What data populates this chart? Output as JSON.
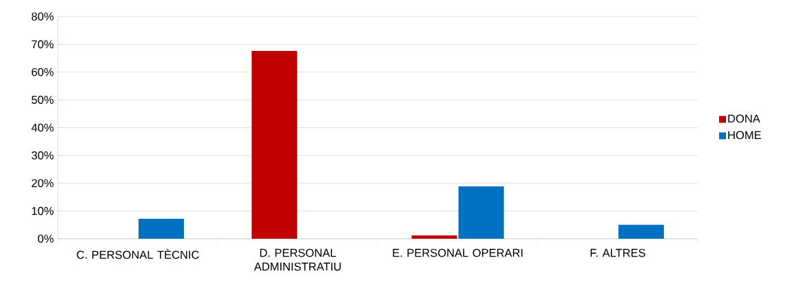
{
  "chart_data": {
    "type": "bar",
    "categories": [
      "C. PERSONAL TÈCNIC",
      "D. PERSONAL ADMINISTRATIU",
      "E. PERSONAL OPERARI",
      "F. ALTRES"
    ],
    "series": [
      {
        "name": "DONA",
        "color": "#c00000",
        "values": [
          0,
          67.6,
          1.2,
          0
        ]
      },
      {
        "name": "HOME",
        "color": "#0070c0",
        "values": [
          7.2,
          0,
          18.8,
          5.0
        ]
      }
    ],
    "ylim": [
      0,
      80
    ],
    "yticks": [
      {
        "value": 0,
        "label": "0%"
      },
      {
        "value": 10,
        "label": "10%"
      },
      {
        "value": 20,
        "label": "20%"
      },
      {
        "value": 30,
        "label": "30%"
      },
      {
        "value": 40,
        "label": "40%"
      },
      {
        "value": 50,
        "label": "50%"
      },
      {
        "value": 60,
        "label": "60%"
      },
      {
        "value": 70,
        "label": "70%"
      },
      {
        "value": 80,
        "label": "80%"
      }
    ],
    "grid": "y",
    "legend": "right"
  }
}
